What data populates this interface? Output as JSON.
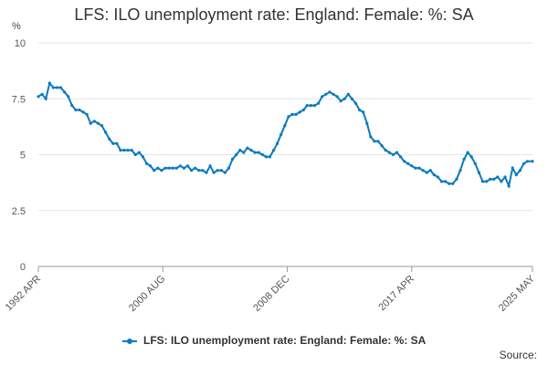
{
  "chart_data": {
    "type": "line",
    "title": "LFS: ILO unemployment rate: England: Female: %: SA",
    "ylabel": "%",
    "ylim": [
      0,
      10
    ],
    "yticks": [
      "0",
      "2.5",
      "5",
      "7.5",
      "10"
    ],
    "xlim": [
      "1992 APR",
      "2025 MAY"
    ],
    "xtick_labels": [
      "1992 APR",
      "2000 AUG",
      "2008 DEC",
      "2017 APR",
      "2025 MAY"
    ],
    "grid": true,
    "legend_position": "bottom",
    "series": [
      {
        "name": "LFS: ILO unemployment rate: England: Female: %: SA",
        "color": "#0a7abf",
        "points": [
          [
            "1992-04",
            7.6
          ],
          [
            "1992-07",
            7.7
          ],
          [
            "1992-10",
            7.5
          ],
          [
            "1993-01",
            8.2
          ],
          [
            "1993-04",
            8.0
          ],
          [
            "1993-07",
            8.0
          ],
          [
            "1993-10",
            8.0
          ],
          [
            "1994-01",
            7.8
          ],
          [
            "1994-04",
            7.6
          ],
          [
            "1994-07",
            7.2
          ],
          [
            "1994-10",
            7.0
          ],
          [
            "1995-01",
            7.0
          ],
          [
            "1995-04",
            6.9
          ],
          [
            "1995-07",
            6.8
          ],
          [
            "1995-10",
            6.4
          ],
          [
            "1996-01",
            6.5
          ],
          [
            "1996-04",
            6.4
          ],
          [
            "1996-07",
            6.3
          ],
          [
            "1996-10",
            6.0
          ],
          [
            "1997-01",
            5.7
          ],
          [
            "1997-04",
            5.5
          ],
          [
            "1997-07",
            5.5
          ],
          [
            "1997-10",
            5.2
          ],
          [
            "1998-01",
            5.2
          ],
          [
            "1998-04",
            5.2
          ],
          [
            "1998-07",
            5.2
          ],
          [
            "1998-10",
            5.0
          ],
          [
            "1999-01",
            5.1
          ],
          [
            "1999-04",
            4.9
          ],
          [
            "1999-07",
            4.6
          ],
          [
            "1999-10",
            4.5
          ],
          [
            "2000-01",
            4.3
          ],
          [
            "2000-04",
            4.4
          ],
          [
            "2000-07",
            4.3
          ],
          [
            "2000-10",
            4.4
          ],
          [
            "2001-01",
            4.4
          ],
          [
            "2001-04",
            4.4
          ],
          [
            "2001-07",
            4.4
          ],
          [
            "2001-10",
            4.5
          ],
          [
            "2002-01",
            4.4
          ],
          [
            "2002-04",
            4.5
          ],
          [
            "2002-07",
            4.3
          ],
          [
            "2002-10",
            4.4
          ],
          [
            "2003-01",
            4.3
          ],
          [
            "2003-04",
            4.3
          ],
          [
            "2003-07",
            4.2
          ],
          [
            "2003-10",
            4.5
          ],
          [
            "2004-01",
            4.2
          ],
          [
            "2004-04",
            4.3
          ],
          [
            "2004-07",
            4.3
          ],
          [
            "2004-10",
            4.2
          ],
          [
            "2005-01",
            4.4
          ],
          [
            "2005-04",
            4.8
          ],
          [
            "2005-07",
            5.0
          ],
          [
            "2005-10",
            5.2
          ],
          [
            "2006-01",
            5.1
          ],
          [
            "2006-04",
            5.3
          ],
          [
            "2006-07",
            5.2
          ],
          [
            "2006-10",
            5.1
          ],
          [
            "2007-01",
            5.1
          ],
          [
            "2007-04",
            5.0
          ],
          [
            "2007-07",
            4.9
          ],
          [
            "2007-10",
            4.9
          ],
          [
            "2008-01",
            5.2
          ],
          [
            "2008-04",
            5.5
          ],
          [
            "2008-07",
            5.9
          ],
          [
            "2008-10",
            6.3
          ],
          [
            "2009-01",
            6.7
          ],
          [
            "2009-04",
            6.8
          ],
          [
            "2009-07",
            6.8
          ],
          [
            "2009-10",
            6.9
          ],
          [
            "2010-01",
            7.0
          ],
          [
            "2010-04",
            7.2
          ],
          [
            "2010-07",
            7.2
          ],
          [
            "2010-10",
            7.2
          ],
          [
            "2011-01",
            7.3
          ],
          [
            "2011-04",
            7.6
          ],
          [
            "2011-07",
            7.7
          ],
          [
            "2011-10",
            7.8
          ],
          [
            "2012-01",
            7.7
          ],
          [
            "2012-04",
            7.6
          ],
          [
            "2012-07",
            7.4
          ],
          [
            "2012-10",
            7.5
          ],
          [
            "2013-01",
            7.7
          ],
          [
            "2013-04",
            7.5
          ],
          [
            "2013-07",
            7.3
          ],
          [
            "2013-10",
            7.0
          ],
          [
            "2014-01",
            6.9
          ],
          [
            "2014-04",
            6.4
          ],
          [
            "2014-07",
            5.8
          ],
          [
            "2014-10",
            5.6
          ],
          [
            "2015-01",
            5.6
          ],
          [
            "2015-04",
            5.4
          ],
          [
            "2015-07",
            5.2
          ],
          [
            "2015-10",
            5.1
          ],
          [
            "2016-01",
            5.0
          ],
          [
            "2016-04",
            5.1
          ],
          [
            "2016-07",
            4.9
          ],
          [
            "2016-10",
            4.7
          ],
          [
            "2017-01",
            4.6
          ],
          [
            "2017-04",
            4.5
          ],
          [
            "2017-07",
            4.4
          ],
          [
            "2017-10",
            4.4
          ],
          [
            "2018-01",
            4.3
          ],
          [
            "2018-04",
            4.2
          ],
          [
            "2018-07",
            4.3
          ],
          [
            "2018-10",
            4.1
          ],
          [
            "2019-01",
            4.0
          ],
          [
            "2019-04",
            3.8
          ],
          [
            "2019-07",
            3.8
          ],
          [
            "2019-10",
            3.7
          ],
          [
            "2020-01",
            3.7
          ],
          [
            "2020-04",
            3.9
          ],
          [
            "2020-07",
            4.3
          ],
          [
            "2020-10",
            4.8
          ],
          [
            "2021-01",
            5.1
          ],
          [
            "2021-04",
            4.9
          ],
          [
            "2021-07",
            4.6
          ],
          [
            "2021-10",
            4.2
          ],
          [
            "2022-01",
            3.8
          ],
          [
            "2022-04",
            3.8
          ],
          [
            "2022-07",
            3.9
          ],
          [
            "2022-10",
            3.9
          ],
          [
            "2023-01",
            4.0
          ],
          [
            "2023-04",
            3.8
          ],
          [
            "2023-07",
            4.0
          ],
          [
            "2023-10",
            3.6
          ],
          [
            "2024-01",
            4.4
          ],
          [
            "2024-04",
            4.1
          ],
          [
            "2024-07",
            4.3
          ],
          [
            "2024-10",
            4.6
          ],
          [
            "2025-01",
            4.7
          ],
          [
            "2025-05",
            4.7
          ]
        ]
      }
    ]
  },
  "footer": {
    "source_label": "Source:"
  }
}
